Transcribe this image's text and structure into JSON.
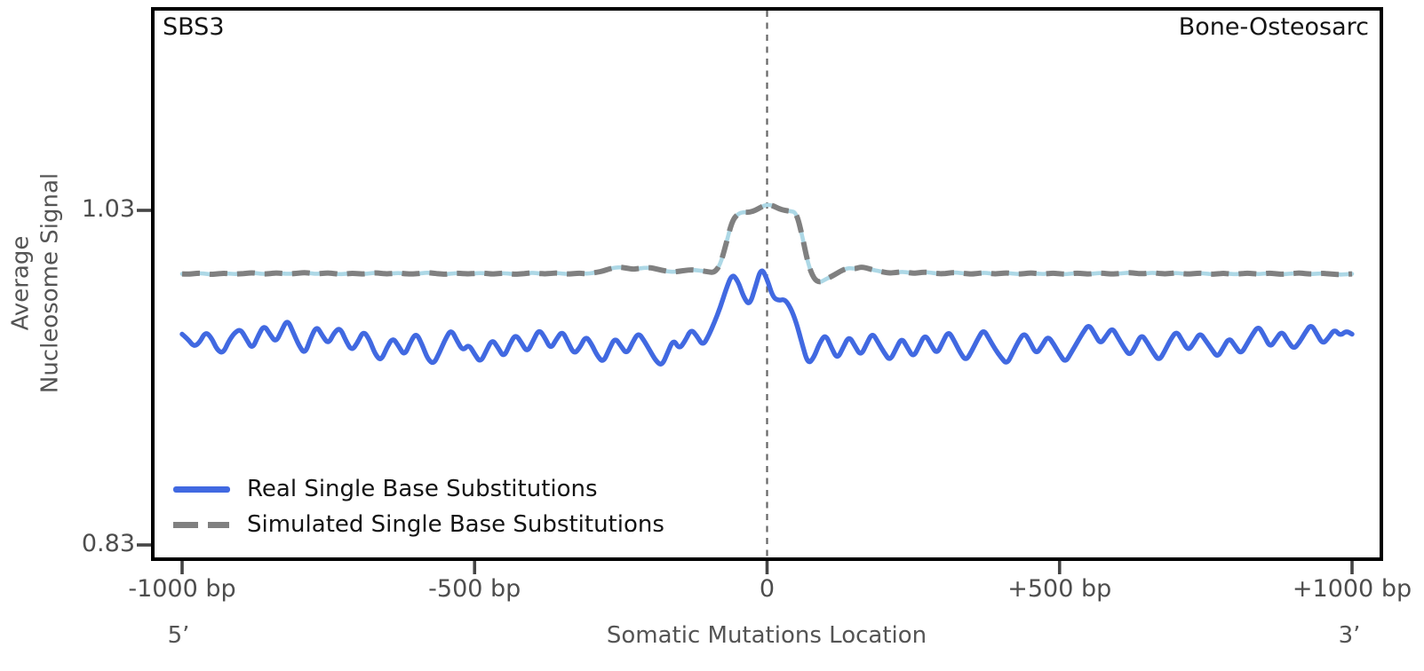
{
  "figure": {
    "signature_label": "SBS3",
    "cancer_type_label": "Bone-Osteosarc"
  },
  "axes": {
    "ylabel": "Average\nNucleosome Signal",
    "xlabel": "Somatic Mutations Location",
    "left_end_label": "5’",
    "right_end_label": "3’",
    "y_ticks": [
      {
        "label": "1.03",
        "value": 1.03
      },
      {
        "label": "0.83",
        "value": 0.83
      }
    ],
    "x_ticks": [
      {
        "label": "-1000 bp",
        "value": -1000
      },
      {
        "label": "-500 bp",
        "value": -500
      },
      {
        "label": "0",
        "value": 0
      },
      {
        "label": "+500 bp",
        "value": 500
      },
      {
        "label": "+1000 bp",
        "value": 1000
      }
    ]
  },
  "legend": [
    {
      "label": "Real Single Base Substitutions",
      "style": "solid",
      "color": "#4169E1"
    },
    {
      "label": "Simulated Single Base Substitutions",
      "style": "dashed",
      "color": "#808080"
    }
  ],
  "colors": {
    "real_line": "#4169E1",
    "simulated_line": "#808080",
    "simulated_underlay": "#ADD8E6",
    "zero_line": "#666666",
    "plot_border": "#000000",
    "tick_mark": "#454545",
    "axis_text": "#545454",
    "title_text": "#141414"
  },
  "chart_data": {
    "type": "line",
    "title": "SBS3",
    "right_annotation": "Bone-Osteosarc",
    "xlabel": "Somatic Mutations Location",
    "ylabel": "Average Nucleosome Signal",
    "xlim": [
      -1000,
      1000
    ],
    "ylim": [
      0.82,
      1.15
    ],
    "grid": false,
    "legend_position": "lower left",
    "zero_line_x": 0,
    "x_start": -1000,
    "x_step": 10,
    "series": [
      {
        "name": "Real Single Base Substitutions",
        "color": "#4169E1",
        "style": "solid",
        "values": [
          0.956,
          0.953,
          0.9485,
          0.951,
          0.9575,
          0.954,
          0.9465,
          0.9445,
          0.952,
          0.957,
          0.959,
          0.953,
          0.947,
          0.955,
          0.9615,
          0.956,
          0.951,
          0.958,
          0.965,
          0.957,
          0.949,
          0.944,
          0.954,
          0.961,
          0.955,
          0.95,
          0.957,
          0.96,
          0.952,
          0.946,
          0.951,
          0.958,
          0.953,
          0.944,
          0.94,
          0.948,
          0.954,
          0.949,
          0.943,
          0.951,
          0.957,
          0.95,
          0.941,
          0.938,
          0.945,
          0.953,
          0.959,
          0.952,
          0.946,
          0.95,
          0.944,
          0.939,
          0.946,
          0.953,
          0.948,
          0.942,
          0.95,
          0.956,
          0.951,
          0.945,
          0.952,
          0.959,
          0.954,
          0.947,
          0.953,
          0.958,
          0.951,
          0.944,
          0.948,
          0.955,
          0.95,
          0.943,
          0.939,
          0.947,
          0.954,
          0.949,
          0.944,
          0.951,
          0.957,
          0.952,
          0.946,
          0.94,
          0.937,
          0.945,
          0.953,
          0.947,
          0.952,
          0.959,
          0.955,
          0.949,
          0.955,
          0.963,
          0.972,
          0.983,
          0.992,
          0.988,
          0.978,
          0.973,
          0.984,
          0.996,
          0.989,
          0.978,
          0.976,
          0.977,
          0.972,
          0.963,
          0.95,
          0.938,
          0.942,
          0.951,
          0.956,
          0.948,
          0.941,
          0.948,
          0.955,
          0.949,
          0.943,
          0.95,
          0.957,
          0.951,
          0.945,
          0.94,
          0.947,
          0.954,
          0.948,
          0.942,
          0.949,
          0.956,
          0.95,
          0.944,
          0.951,
          0.958,
          0.952,
          0.945,
          0.94,
          0.946,
          0.953,
          0.959,
          0.953,
          0.947,
          0.942,
          0.938,
          0.945,
          0.952,
          0.957,
          0.951,
          0.944,
          0.949,
          0.955,
          0.95,
          0.944,
          0.939,
          0.945,
          0.951,
          0.957,
          0.962,
          0.956,
          0.95,
          0.955,
          0.96,
          0.954,
          0.948,
          0.943,
          0.949,
          0.956,
          0.951,
          0.945,
          0.94,
          0.946,
          0.953,
          0.958,
          0.952,
          0.946,
          0.951,
          0.957,
          0.952,
          0.947,
          0.942,
          0.948,
          0.954,
          0.949,
          0.944,
          0.95,
          0.956,
          0.961,
          0.955,
          0.948,
          0.953,
          0.958,
          0.952,
          0.947,
          0.951,
          0.957,
          0.962,
          0.956,
          0.95,
          0.954,
          0.959,
          0.955,
          0.958,
          0.956
        ]
      },
      {
        "name": "Simulated Single Base Substitutions",
        "color": "#808080",
        "underlay_color": "#ADD8E6",
        "style": "dashed",
        "values": [
          0.992,
          0.9918,
          0.9922,
          0.9925,
          0.9921,
          0.9917,
          0.992,
          0.9924,
          0.9922,
          0.9919,
          0.9921,
          0.9924,
          0.9927,
          0.9923,
          0.9919,
          0.9922,
          0.9926,
          0.9923,
          0.992,
          0.9922,
          0.9925,
          0.9928,
          0.9924,
          0.992,
          0.9923,
          0.9926,
          0.9922,
          0.9918,
          0.9921,
          0.9924,
          0.9922,
          0.9919,
          0.9923,
          0.9927,
          0.9924,
          0.992,
          0.9923,
          0.9926,
          0.9922,
          0.9919,
          0.9921,
          0.9925,
          0.9928,
          0.9924,
          0.9921,
          0.9918,
          0.9922,
          0.9925,
          0.9922,
          0.992,
          0.9923,
          0.9926,
          0.9923,
          0.9919,
          0.9922,
          0.9925,
          0.9921,
          0.9918,
          0.9921,
          0.9924,
          0.9927,
          0.9923,
          0.992,
          0.9923,
          0.9926,
          0.9922,
          0.9919,
          0.9922,
          0.9925,
          0.9921,
          0.9925,
          0.993,
          0.9938,
          0.995,
          0.9958,
          0.996,
          0.9955,
          0.9948,
          0.9952,
          0.9956,
          0.9958,
          0.995,
          0.9942,
          0.9935,
          0.9932,
          0.9936,
          0.9941,
          0.9945,
          0.9942,
          0.9938,
          0.9932,
          0.9928,
          0.9975,
          1.01,
          1.0235,
          1.028,
          1.029,
          1.0288,
          1.03,
          1.032,
          1.0335,
          1.0328,
          1.031,
          1.03,
          1.0295,
          1.0288,
          1.015,
          0.998,
          0.989,
          0.9868,
          0.9888,
          0.9905,
          0.9925,
          0.9945,
          0.9956,
          0.995,
          0.9962,
          0.9956,
          0.9945,
          0.9938,
          0.993,
          0.9925,
          0.9929,
          0.9933,
          0.9929,
          0.9924,
          0.9927,
          0.9931,
          0.9927,
          0.9923,
          0.9921,
          0.9925,
          0.9929,
          0.9926,
          0.9922,
          0.9919,
          0.9923,
          0.9927,
          0.9924,
          0.992,
          0.9923,
          0.9926,
          0.9922,
          0.9919,
          0.9922,
          0.9926,
          0.9923,
          0.9919,
          0.9922,
          0.9925,
          0.9921,
          0.9918,
          0.9922,
          0.9925,
          0.9922,
          0.9919,
          0.9923,
          0.9926,
          0.9922,
          0.9919,
          0.9922,
          0.9925,
          0.9928,
          0.9924,
          0.9921,
          0.9924,
          0.9927,
          0.9923,
          0.992,
          0.9923,
          0.9926,
          0.9922,
          0.9919,
          0.9922,
          0.9925,
          0.9922,
          0.9918,
          0.9921,
          0.9924,
          0.9921,
          0.9918,
          0.9921,
          0.9925,
          0.9922,
          0.9919,
          0.9922,
          0.9925,
          0.9921,
          0.9918,
          0.992,
          0.9923,
          0.9926,
          0.9922,
          0.9919,
          0.9921,
          0.9924,
          0.9921,
          0.9918,
          0.9916,
          0.9918,
          0.992
        ]
      }
    ]
  }
}
